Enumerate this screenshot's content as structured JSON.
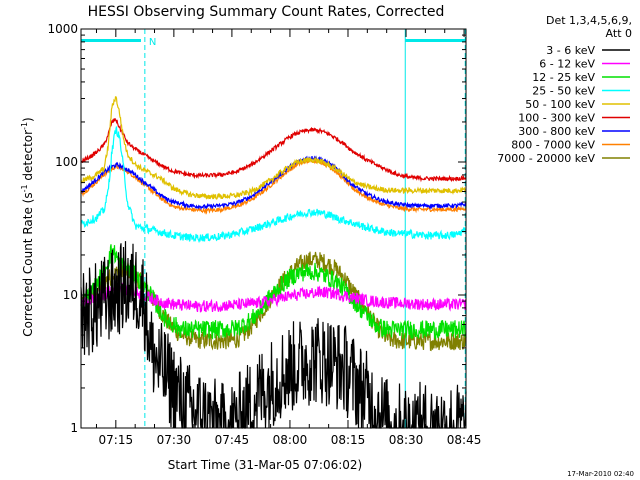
{
  "chart_data": {
    "type": "line",
    "title": "HESSI Observing Summary Count Rates, Corrected",
    "ylabel_main": "Corrected Count Rate (s",
    "ylabel_sup1": "-1",
    "ylabel_mid": " detector",
    "ylabel_sup2": "-1",
    "ylabel_end": ")",
    "xlabel": "Start Time (31-Mar-05 07:06:02)",
    "footer": "17-Mar-2010 02:40",
    "y_scale": "log",
    "ylim": [
      1,
      1000
    ],
    "xlim_minutes": [
      0,
      99.5
    ],
    "xlim_labels": [
      "07:06:02",
      "08:45:32"
    ],
    "y_ticks": [
      {
        "value": 1,
        "label": "1"
      },
      {
        "value": 10,
        "label": "10"
      },
      {
        "value": 100,
        "label": "100"
      },
      {
        "value": 1000,
        "label": "1000"
      }
    ],
    "x_ticks": [
      {
        "minute": 9,
        "label": "07:15"
      },
      {
        "minute": 24,
        "label": "07:30"
      },
      {
        "minute": 39,
        "label": "07:45"
      },
      {
        "minute": 54,
        "label": "08:00"
      },
      {
        "minute": 69,
        "label": "08:15"
      },
      {
        "minute": 84,
        "label": "08:30"
      },
      {
        "minute": 99,
        "label": "08:45"
      }
    ],
    "legend": {
      "placement": "right",
      "header": [
        "Det 1,3,4,5,6,9,",
        "Att 0"
      ]
    },
    "series": [
      {
        "name": "3 - 6 keV",
        "color": "#000000",
        "x": [
          0,
          2,
          4,
          6,
          8,
          10,
          12,
          14,
          16,
          17,
          18,
          20,
          22,
          24,
          26,
          28,
          30,
          32,
          34,
          36,
          38,
          40,
          42,
          44,
          46,
          48,
          50,
          52,
          54,
          56,
          58,
          60,
          62,
          64,
          66,
          68,
          70,
          72,
          74,
          76,
          78,
          80,
          82,
          84,
          86,
          88,
          90,
          92,
          94,
          96,
          98,
          99.5
        ],
        "values": [
          7,
          7.5,
          8,
          9,
          10,
          11,
          12,
          11.5,
          10,
          7,
          4,
          3,
          2.5,
          2,
          1.6,
          1.4,
          1.3,
          1.2,
          1.1,
          1,
          1,
          1.1,
          1.3,
          1.5,
          1.8,
          2,
          2.3,
          2.6,
          2.8,
          3,
          3.2,
          3.3,
          3.3,
          3.2,
          3,
          2.8,
          2.4,
          2,
          1.7,
          1.4,
          1.2,
          1,
          1,
          1,
          1,
          1,
          1,
          1,
          1,
          1,
          1,
          1
        ]
      },
      {
        "name": "6 - 12 keV",
        "color": "#ff00ff",
        "x": [
          0,
          2,
          4,
          6,
          8,
          10,
          12,
          14,
          16,
          18,
          20,
          24,
          30,
          36,
          42,
          46,
          50,
          54,
          58,
          62,
          64,
          66,
          70,
          74,
          78,
          82,
          86,
          90,
          94,
          99.5
        ],
        "values": [
          8.5,
          9,
          9.5,
          10,
          11,
          11.5,
          11,
          10.5,
          10,
          9.5,
          9,
          8.5,
          8.2,
          8.3,
          8.5,
          8.7,
          9.2,
          9.8,
          10.2,
          10.5,
          10.4,
          10.2,
          9.6,
          9.1,
          8.8,
          8.7,
          8.6,
          8.5,
          8.5,
          8.5
        ]
      },
      {
        "name": "12 - 25 keV",
        "color": "#00e000",
        "x": [
          0,
          2,
          4,
          6,
          7,
          8,
          9,
          10,
          12,
          14,
          16,
          18,
          20,
          22,
          24,
          26,
          30,
          36,
          40,
          42,
          44,
          46,
          48,
          50,
          52,
          54,
          56,
          58,
          60,
          62,
          64,
          66,
          68,
          70,
          72,
          74,
          76,
          78,
          80,
          82,
          84,
          88,
          92,
          96,
          99.5
        ],
        "values": [
          8,
          10,
          12,
          15,
          18,
          22,
          20,
          17,
          16,
          14,
          12,
          10,
          8,
          6.5,
          6,
          5.5,
          5.5,
          5.5,
          5.6,
          6,
          6.5,
          7.5,
          9,
          10.5,
          12,
          13.5,
          14.5,
          15,
          15,
          14.5,
          13.5,
          12.5,
          11,
          9.5,
          8,
          7,
          6,
          5.6,
          5.5,
          5.5,
          5.5,
          5.5,
          5.5,
          5.5,
          5.5
        ]
      },
      {
        "name": "25 - 50 keV",
        "color": "#00ffff",
        "x": [
          0,
          2,
          4,
          6,
          7,
          8,
          9,
          10,
          11,
          12,
          14,
          16,
          18,
          20,
          22,
          24,
          28,
          32,
          36,
          40,
          44,
          48,
          52,
          54,
          56,
          58,
          60,
          62,
          64,
          66,
          70,
          74,
          78,
          82,
          86,
          90,
          94,
          97,
          99.5
        ],
        "values": [
          34,
          36,
          38,
          44,
          60,
          120,
          180,
          150,
          90,
          50,
          33,
          32,
          31,
          30,
          29,
          28,
          27,
          27,
          27.5,
          29,
          31,
          34,
          37,
          39,
          40.5,
          41.5,
          42,
          41.5,
          40,
          38,
          35,
          32,
          30,
          29,
          28.5,
          28,
          28,
          28.5,
          31
        ]
      },
      {
        "name": "50 - 100 keV",
        "color": "#e0c000",
        "x": [
          0,
          2,
          4,
          6,
          7,
          8,
          9,
          10,
          11,
          12,
          14,
          16,
          18,
          20,
          22,
          24,
          28,
          32,
          36,
          40,
          44,
          48,
          52,
          54,
          56,
          58,
          60,
          62,
          64,
          66,
          68,
          70,
          74,
          78,
          82,
          86,
          90,
          94,
          97,
          99.5
        ],
        "values": [
          72,
          75,
          80,
          90,
          130,
          260,
          310,
          230,
          150,
          115,
          96,
          88,
          82,
          77,
          70,
          63,
          57,
          55,
          55,
          56,
          60,
          70,
          85,
          93,
          100,
          103,
          104,
          101,
          95,
          88,
          80,
          72,
          65,
          62,
          61,
          61,
          61,
          61,
          61,
          62
        ]
      },
      {
        "name": "100 - 300 keV",
        "color": "#e00000",
        "x": [
          0,
          2,
          4,
          6,
          7,
          8,
          9,
          10,
          11,
          12,
          14,
          16,
          18,
          20,
          22,
          24,
          28,
          32,
          36,
          40,
          44,
          48,
          52,
          54,
          56,
          58,
          60,
          62,
          64,
          66,
          68,
          70,
          74,
          78,
          82,
          86,
          90,
          94,
          97,
          99.5
        ],
        "values": [
          100,
          108,
          118,
          135,
          160,
          200,
          210,
          180,
          160,
          140,
          125,
          115,
          105,
          97,
          90,
          85,
          80,
          79,
          80,
          84,
          95,
          115,
          140,
          155,
          165,
          172,
          174,
          171,
          163,
          150,
          137,
          122,
          103,
          90,
          80,
          76,
          75,
          75,
          75,
          76
        ]
      },
      {
        "name": "300 - 800 keV",
        "color": "#0000ff",
        "x": [
          0,
          2,
          4,
          6,
          8,
          9,
          10,
          12,
          14,
          16,
          18,
          20,
          22,
          24,
          28,
          32,
          36,
          40,
          44,
          48,
          52,
          54,
          56,
          58,
          60,
          62,
          64,
          66,
          68,
          70,
          74,
          78,
          82,
          86,
          90,
          94,
          97,
          99.5
        ],
        "values": [
          60,
          66,
          74,
          84,
          92,
          95,
          94,
          88,
          80,
          72,
          65,
          58,
          53,
          50,
          47,
          46,
          47,
          49,
          55,
          67,
          83,
          92,
          100,
          106,
          108,
          105,
          98,
          89,
          78,
          68,
          57,
          51,
          48,
          47,
          47,
          47,
          47,
          48
        ]
      },
      {
        "name": "800 - 7000 keV",
        "color": "#ff8000",
        "x": [
          0,
          2,
          4,
          6,
          8,
          9,
          10,
          12,
          14,
          16,
          18,
          20,
          22,
          24,
          28,
          32,
          36,
          40,
          44,
          48,
          52,
          54,
          56,
          58,
          60,
          62,
          64,
          66,
          68,
          70,
          74,
          78,
          82,
          86,
          90,
          94,
          97,
          99.5
        ],
        "values": [
          57,
          63,
          71,
          81,
          89,
          92,
          91,
          85,
          77,
          69,
          62,
          55,
          50,
          46,
          44,
          43,
          44,
          46,
          52,
          63,
          79,
          88,
          96,
          101,
          103,
          100,
          93,
          84,
          74,
          64,
          54,
          48,
          45,
          44,
          44,
          44,
          44,
          45
        ]
      },
      {
        "name": "7000 - 20000 keV",
        "color": "#808000",
        "x": [
          0,
          2,
          4,
          6,
          8,
          10,
          12,
          14,
          16,
          18,
          20,
          22,
          24,
          26,
          30,
          36,
          40,
          42,
          44,
          46,
          48,
          50,
          52,
          54,
          56,
          58,
          60,
          62,
          64,
          66,
          68,
          70,
          72,
          74,
          76,
          78,
          80,
          84,
          88,
          92,
          96,
          99.5
        ],
        "values": [
          8,
          9.5,
          11,
          12.5,
          14,
          15,
          15,
          14,
          12,
          10,
          8,
          6.5,
          5.5,
          5,
          4.6,
          4.5,
          4.6,
          5,
          5.8,
          7,
          8.5,
          10.5,
          12.5,
          14.5,
          16.5,
          18,
          18.5,
          18,
          17,
          15.5,
          13.5,
          11,
          9,
          7.5,
          6,
          5,
          4.6,
          4.5,
          4.5,
          4.5,
          4.5,
          4.5
        ]
      }
    ],
    "markers": [
      {
        "minute": 0,
        "style": "solid"
      },
      {
        "minute": 16.5,
        "style": "dashed",
        "label": "N"
      },
      {
        "minute": 83.8,
        "style": "solid"
      },
      {
        "minute": 99.3,
        "style": "dashed"
      }
    ],
    "top_bars": [
      {
        "from_minute": 0,
        "to_minute": 15.5
      },
      {
        "from_minute": 83.8,
        "to_minute": 99.3
      }
    ],
    "marker_color": "#00e8e8"
  }
}
